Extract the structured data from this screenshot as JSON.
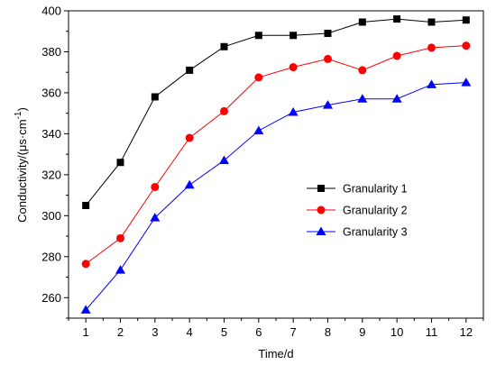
{
  "chart_data": {
    "type": "line",
    "xlabel": "Time/d",
    "ylabel_main": "Conductivity/(μs·cm",
    "ylabel_sup": "-1",
    "ylabel_close": ")",
    "x": [
      1,
      2,
      3,
      4,
      5,
      6,
      7,
      8,
      9,
      10,
      11,
      12
    ],
    "xlim": [
      0.5,
      12.5
    ],
    "ylim": [
      250,
      400
    ],
    "yticks": [
      260,
      280,
      300,
      320,
      340,
      360,
      380,
      400
    ],
    "grid": false,
    "legend_position": "center-right",
    "series": [
      {
        "name": "Granularity 1",
        "color": "#000000",
        "marker": "square",
        "values": [
          305,
          326,
          358,
          371,
          382.5,
          388,
          388,
          389,
          394.5,
          396,
          394.5,
          395.5
        ]
      },
      {
        "name": "Granularity 2",
        "color": "#ff0000",
        "marker": "circle",
        "values": [
          276.5,
          289,
          314,
          338,
          351,
          367.5,
          372.5,
          376.5,
          371,
          378,
          382,
          383
        ]
      },
      {
        "name": "Granularity 3",
        "color": "#0000ff",
        "marker": "triangle",
        "values": [
          254,
          273.5,
          299,
          315,
          327,
          341.5,
          350.5,
          354,
          357,
          357,
          364,
          365
        ]
      }
    ]
  }
}
